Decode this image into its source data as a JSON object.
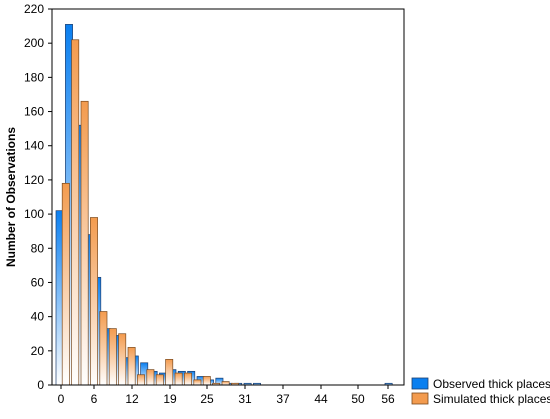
{
  "chart_data": {
    "type": "bar",
    "title": "",
    "xlabel": "",
    "ylabel": "Number of Observations",
    "ylim": [
      0,
      220
    ],
    "y_ticks": [
      0,
      20,
      40,
      60,
      80,
      100,
      120,
      140,
      160,
      180,
      200,
      220
    ],
    "x_tick_labels": [
      "0",
      "6",
      "12",
      "19",
      "25",
      "31",
      "37",
      "44",
      "50",
      "56"
    ],
    "grid": false,
    "legend_position": "bottom-right",
    "bin_count": 36,
    "series": [
      {
        "name": "Observed thick places",
        "color": "#0a7ff0",
        "values": [
          102,
          211,
          152,
          88,
          63,
          33,
          29,
          16,
          17,
          13,
          8,
          7,
          9,
          8,
          8,
          5,
          3,
          4,
          1,
          1,
          1,
          1,
          0,
          0,
          0,
          0,
          0,
          0,
          0,
          0,
          0,
          0,
          0,
          0,
          0,
          1
        ]
      },
      {
        "name": "Simulated thick places",
        "color": "#f39b4e",
        "values": [
          118,
          202,
          166,
          98,
          43,
          33,
          30,
          22,
          6,
          9,
          6,
          15,
          7,
          7,
          3,
          5,
          1,
          2,
          1,
          0,
          0,
          0,
          0,
          0,
          0,
          0,
          0,
          0,
          0,
          0,
          0,
          0,
          0,
          0,
          0,
          0
        ]
      }
    ]
  }
}
